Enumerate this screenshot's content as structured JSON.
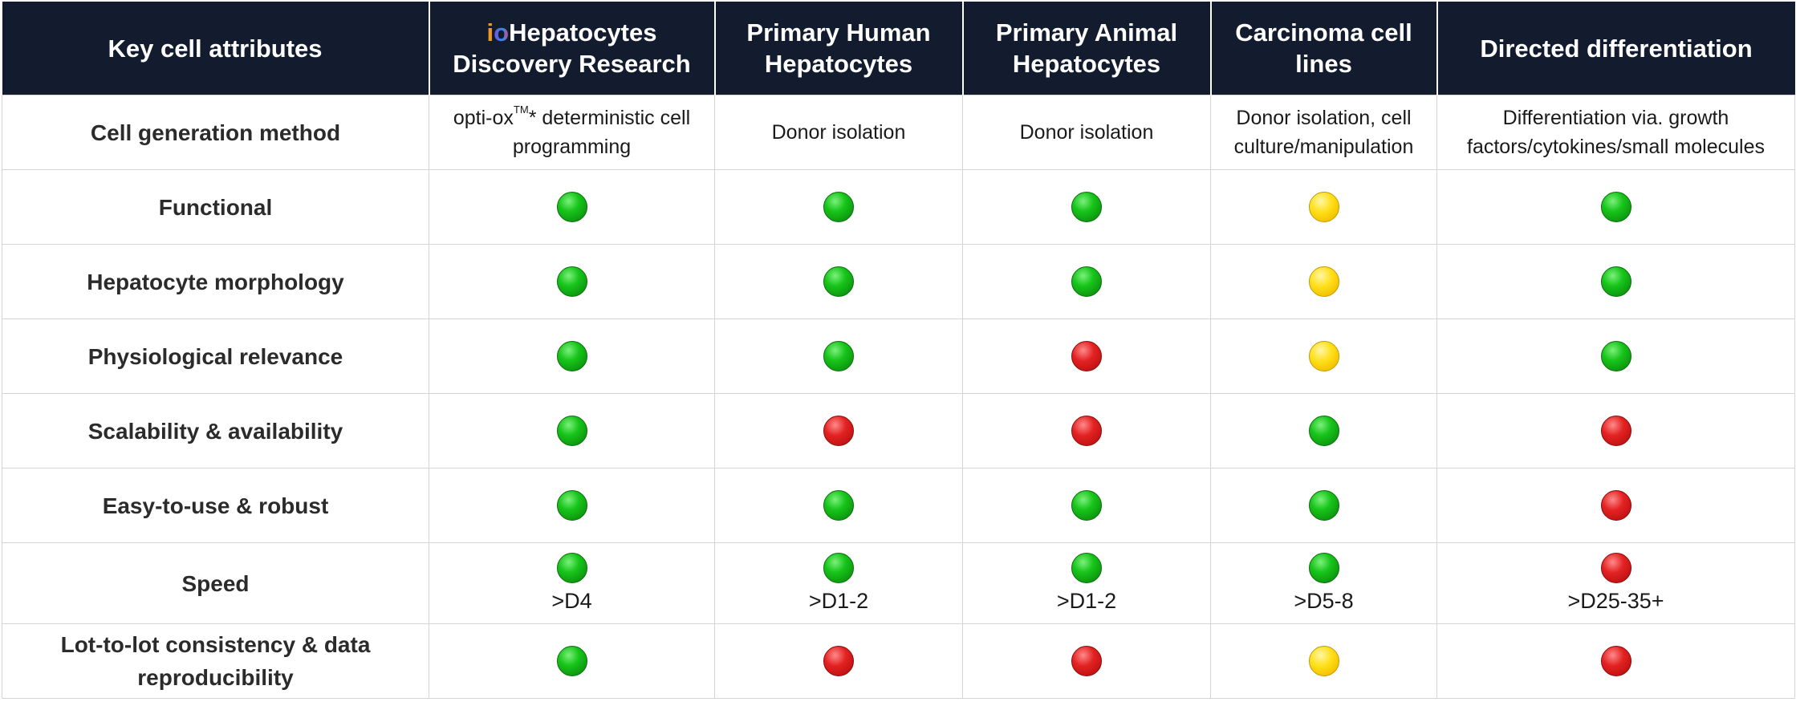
{
  "header": {
    "col0": "Key cell attributes",
    "col1_logo_i": "i",
    "col1_logo_o": "o",
    "col1_line1": "Hepatocytes",
    "col1_line2": "Discovery Research",
    "col2": "Primary Human Hepatocytes",
    "col3": "Primary Animal Hepatocytes",
    "col4": "Carcinoma cell lines",
    "col5": "Directed differentiation"
  },
  "method_row": {
    "label": "Cell generation method",
    "c1_pre": "opti-ox",
    "c1_tm": "TM",
    "c1_post": "* deterministic cell programming",
    "c2": "Donor isolation",
    "c3": "Donor isolation",
    "c4": "Donor isolation, cell culture/manipulation",
    "c5": "Differentiation via. growth factors/cytokines/small molecules"
  },
  "rows": [
    {
      "label": "Functional",
      "ratings": [
        "green",
        "green",
        "green",
        "yellow",
        "green"
      ]
    },
    {
      "label": "Hepatocyte morphology",
      "ratings": [
        "green",
        "green",
        "green",
        "yellow",
        "green"
      ]
    },
    {
      "label": "Physiological relevance",
      "ratings": [
        "green",
        "green",
        "red",
        "yellow",
        "green"
      ]
    },
    {
      "label": "Scalability & availability",
      "ratings": [
        "green",
        "red",
        "red",
        "green",
        "red"
      ]
    },
    {
      "label": "Easy-to-use & robust",
      "ratings": [
        "green",
        "green",
        "green",
        "green",
        "red"
      ]
    }
  ],
  "speed_row": {
    "label": "Speed",
    "ratings": [
      "green",
      "green",
      "green",
      "green",
      "red"
    ],
    "values": [
      ">D4",
      ">D1-2",
      ">D1-2",
      ">D5-8",
      ">D25-35+"
    ]
  },
  "lot_row": {
    "label": "Lot-to-lot consistency & data reproducibility",
    "ratings": [
      "green",
      "red",
      "red",
      "yellow",
      "red"
    ]
  },
  "colors": {
    "header_bg": "#131c2e",
    "green": "#17c51a",
    "yellow": "#ffe01c",
    "red": "#e32222",
    "grid": "#d4d4d4"
  }
}
